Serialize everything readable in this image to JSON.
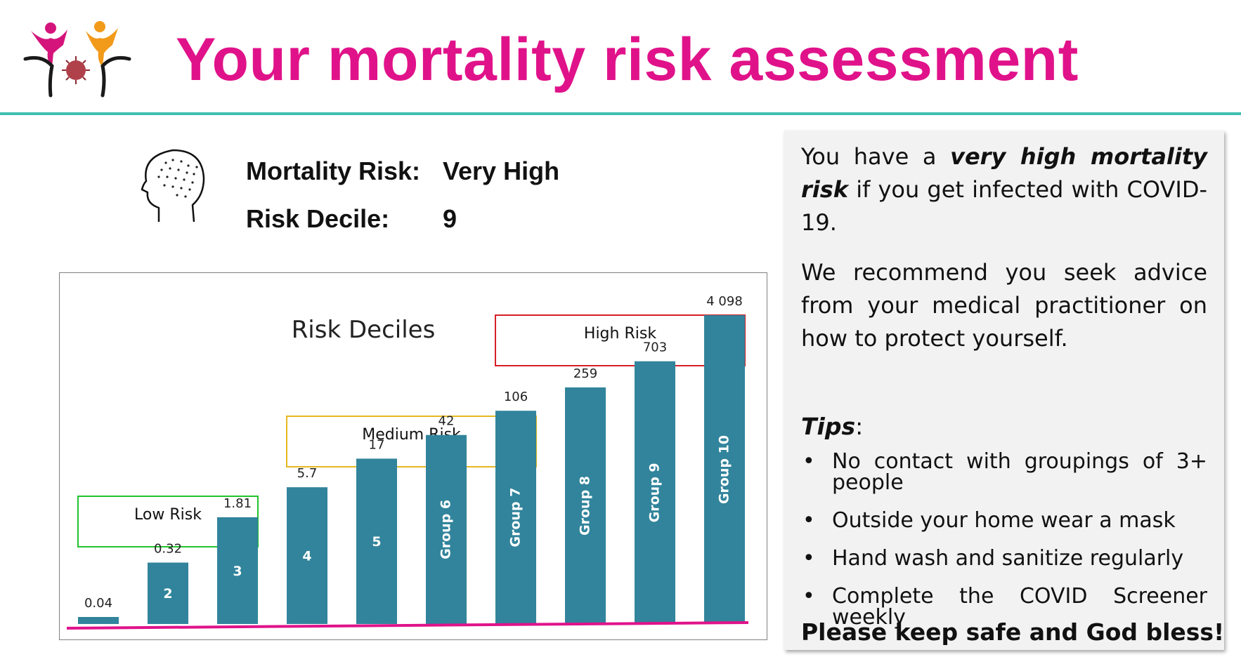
{
  "header": {
    "title": "Your mortality risk assessment",
    "logo_icon": "people-virus-logo-icon",
    "title_color": "#e0128a",
    "divider_color": "#3dbfae"
  },
  "summary": {
    "icon": "head-brain-icon",
    "risk_label": "Mortality Risk:",
    "risk_value": "Very High",
    "decile_label": "Risk Decile:",
    "decile_value": "9"
  },
  "chart_data": {
    "type": "bar",
    "title": "Risk Deciles",
    "categories": [
      "",
      "2",
      "3",
      "4",
      "5",
      "Group 6",
      "Group 7",
      "Group 8",
      "Group 9",
      "Group 10"
    ],
    "values": [
      0.04,
      0.32,
      1.81,
      5.7,
      17,
      42,
      106,
      259,
      703,
      4098
    ],
    "value_labels": [
      "0.04",
      "0.32",
      "1.81",
      "5.7",
      "17",
      "42",
      "106",
      "259",
      "703",
      "4 098"
    ],
    "bar_color": "#31849b",
    "baseline_color": "#e0128a",
    "risk_groups": [
      {
        "label": "Low Risk",
        "color": "#22c32e",
        "from": 0,
        "to": 2
      },
      {
        "label": "Medium Risk",
        "color": "#e6b820",
        "from": 3,
        "to": 6
      },
      {
        "label": "High Risk",
        "color": "#d61f26",
        "from": 6,
        "to": 9
      }
    ]
  },
  "advice": {
    "intro_prefix": "You have a ",
    "intro_emphasis": "very high mortality risk",
    "intro_suffix": " if you get infected with COVID-19.",
    "recommendation": "We recommend you seek advice from your medical practitioner on how to protect yourself.",
    "tips_heading": "Tips",
    "tips_colon": ":",
    "tips": [
      "No contact with groupings of 3+ people",
      "Outside your home wear a mask",
      "Hand wash and sanitize regularly",
      "Complete the COVID Screener weekly"
    ],
    "closing": "Please keep safe and God bless!"
  }
}
